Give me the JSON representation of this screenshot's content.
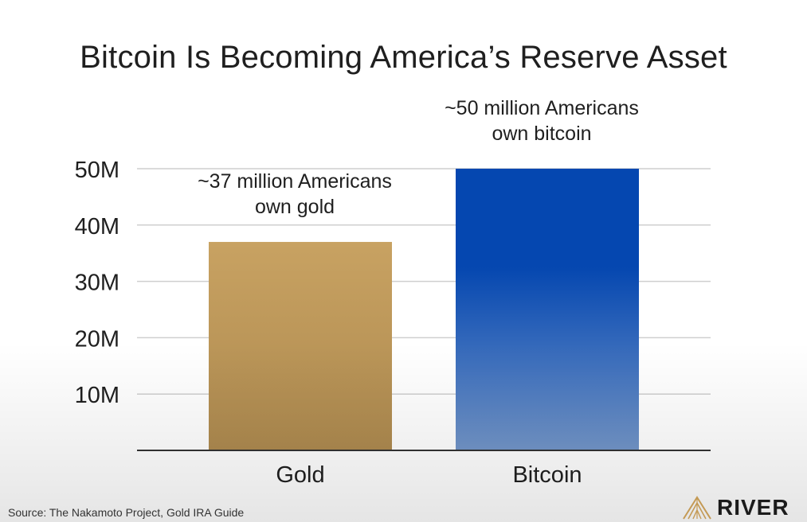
{
  "title": "Bitcoin Is Becoming America’s Reserve Asset",
  "source": "Source: The Nakamoto Project, Gold IRA Guide",
  "brand": {
    "name": "RIVER",
    "icon": "river-logo-icon"
  },
  "colors": {
    "gold": "#c8a262",
    "gold_dark": "#ae8a4f",
    "bitcoin_top": "#0547b0",
    "bitcoin_bottom": "#7396c9",
    "grid": "#cfcfcf",
    "axis": "#333333",
    "text": "#1f1f1f"
  },
  "chart_data": {
    "type": "bar",
    "title": "Bitcoin Is Becoming America’s Reserve Asset",
    "categories": [
      "Gold",
      "Bitcoin"
    ],
    "values": [
      37,
      50
    ],
    "value_unit": "M",
    "ylim": [
      0,
      50
    ],
    "yticks": [
      10,
      20,
      30,
      40,
      50
    ],
    "ytick_labels": [
      "10M",
      "20M",
      "30M",
      "40M",
      "50M"
    ],
    "grid": true,
    "annotations": [
      {
        "category": "Gold",
        "lines": [
          "~37 million Americans",
          "own gold"
        ]
      },
      {
        "category": "Bitcoin",
        "lines": [
          "~50 million Americans",
          "own bitcoin"
        ]
      }
    ]
  }
}
